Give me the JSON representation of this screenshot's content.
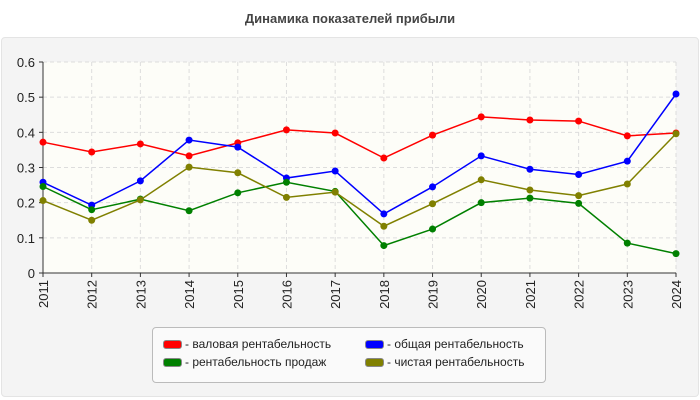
{
  "chart_data": {
    "type": "line",
    "title": "Динамика показателей прибыли",
    "categories": [
      "2011",
      "2012",
      "2013",
      "2014",
      "2015",
      "2016",
      "2017",
      "2018",
      "2019",
      "2020",
      "2021",
      "2022",
      "2023",
      "2024"
    ],
    "ylim": [
      0,
      0.6
    ],
    "yticks": [
      "0",
      "0.1",
      "0.2",
      "0.3",
      "0.4",
      "0.5",
      "0.6"
    ],
    "grid": true,
    "legend_position": "bottom",
    "series": [
      {
        "name": "- валовая рентабельность",
        "color": "#ff0000",
        "values": [
          0.372,
          0.344,
          0.367,
          0.333,
          0.37,
          0.407,
          0.398,
          0.327,
          0.392,
          0.444,
          0.435,
          0.432,
          0.39,
          0.398
        ]
      },
      {
        "name": "- общая рентабельность",
        "color": "#0000ff",
        "values": [
          0.258,
          0.193,
          0.262,
          0.378,
          0.358,
          0.27,
          0.29,
          0.168,
          0.245,
          0.333,
          0.295,
          0.28,
          0.318,
          0.509
        ]
      },
      {
        "name": "- рентабельность продаж",
        "color": "#008000",
        "values": [
          0.246,
          0.18,
          0.21,
          0.177,
          0.228,
          0.258,
          0.232,
          0.078,
          0.125,
          0.2,
          0.213,
          0.198,
          0.085,
          0.055
        ]
      },
      {
        "name": "- чистая рентабельность",
        "color": "#808000",
        "values": [
          0.206,
          0.15,
          0.208,
          0.301,
          0.285,
          0.215,
          0.23,
          0.133,
          0.197,
          0.265,
          0.236,
          0.22,
          0.253,
          0.396
        ]
      }
    ]
  }
}
